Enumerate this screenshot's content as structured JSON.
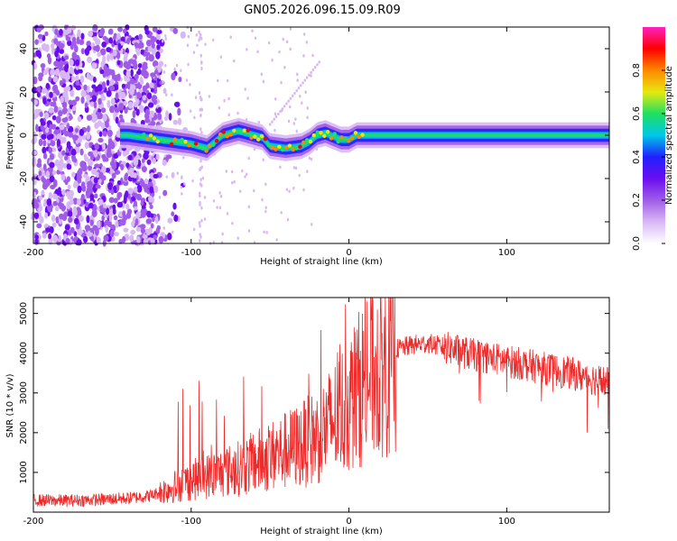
{
  "title": "GN05.2026.096.15.09.R09",
  "colors": {
    "snr_line": "#ee2b2b",
    "spectrogram_scale": [
      "#ffffff",
      "#d8b8f4",
      "#a05ce8",
      "#6a0ef0",
      "#2020ff",
      "#00c8e8",
      "#20e060",
      "#e8e810",
      "#ff8800",
      "#ff0000",
      "#ff20c0"
    ]
  },
  "chart_data": [
    {
      "type": "heatmap",
      "name": "spectrogram",
      "title": "GN05.2026.096.15.09.R09",
      "xlabel": "Height of straight line (km)",
      "ylabel": "Frequency (Hz)",
      "xlim": [
        -200,
        165
      ],
      "ylim": [
        -50,
        50
      ],
      "x_ticks": [
        -200,
        -100,
        0,
        100
      ],
      "y_ticks": [
        -40,
        -20,
        0,
        20,
        40
      ],
      "colorbar": {
        "label": "Normalized spectral amplitude",
        "range": [
          0,
          1
        ],
        "ticks": [
          "0.0",
          "0.2",
          "0.4",
          "0.6",
          "0.8"
        ]
      },
      "ridge": {
        "x": [
          -140,
          -120,
          -100,
          -90,
          -80,
          -70,
          -60,
          -55,
          -50,
          -40,
          -30,
          -25,
          -20,
          -15,
          -5,
          0,
          5,
          10,
          20,
          50,
          100,
          150,
          165
        ],
        "frequency": [
          0,
          -2,
          -4,
          -6,
          0,
          2,
          0,
          -1,
          -5,
          -6,
          -5,
          -3,
          0,
          1,
          -2,
          -2,
          0,
          0,
          0,
          0,
          0,
          0,
          0
        ]
      }
    },
    {
      "type": "line",
      "name": "snr",
      "xlabel": "Height of straight line (km)",
      "ylabel": "SNR (10 * v/v)",
      "xlim": [
        -200,
        165
      ],
      "ylim": [
        0,
        5400
      ],
      "x_ticks": [
        -200,
        -100,
        0,
        100
      ],
      "y_ticks": [
        1000,
        2000,
        3000,
        4000,
        5000
      ],
      "series": [
        {
          "name": "SNR",
          "x": [
            -200,
            -180,
            -160,
            -140,
            -125,
            -115,
            -100,
            -90,
            -80,
            -70,
            -60,
            -50,
            -40,
            -30,
            -20,
            -10,
            0,
            10,
            20,
            30,
            40,
            50,
            60,
            80,
            100,
            120,
            140,
            160,
            165
          ],
          "values": [
            300,
            290,
            310,
            350,
            420,
            580,
            800,
            900,
            1000,
            1100,
            1250,
            1400,
            1550,
            1700,
            1900,
            2300,
            2750,
            3300,
            3800,
            4100,
            4200,
            4250,
            4150,
            3950,
            3800,
            3650,
            3500,
            3300,
            3250
          ]
        }
      ]
    }
  ]
}
